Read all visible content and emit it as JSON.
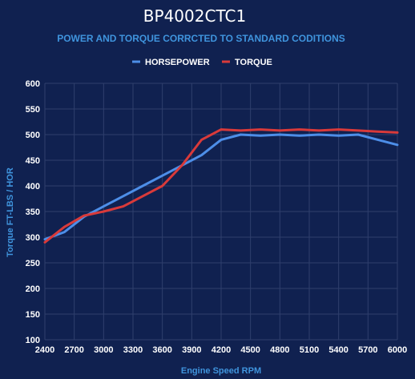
{
  "chart_data": {
    "type": "line",
    "title": "BP4002CTC1",
    "subtitle": "POWER AND TORQUE CORRCTED TO STANDARD CODITIONS",
    "xlabel": "Engine Speed RPM",
    "ylabel": "Torque FT-LBS / HOR",
    "xlim": [
      2400,
      6000
    ],
    "ylim": [
      100,
      600
    ],
    "x_ticks": [
      2400,
      2700,
      3000,
      3300,
      3600,
      3900,
      4200,
      4500,
      4800,
      5100,
      5400,
      5700,
      6000
    ],
    "y_ticks": [
      100,
      150,
      200,
      250,
      300,
      350,
      400,
      450,
      500,
      550,
      600
    ],
    "grid": true,
    "legend_position": "top",
    "series": [
      {
        "name": "HORSEPOWER",
        "color": "#4d8ee8",
        "x": [
          2400,
          2600,
          2800,
          3000,
          3200,
          3400,
          3600,
          3800,
          4000,
          4200,
          4400,
          4600,
          4800,
          5000,
          5200,
          5400,
          5600,
          5800,
          6000
        ],
        "y": [
          296,
          310,
          340,
          360,
          380,
          400,
          420,
          440,
          460,
          490,
          500,
          498,
          500,
          498,
          500,
          498,
          500,
          490,
          480
        ]
      },
      {
        "name": "TORQUE",
        "color": "#d93a3a",
        "x": [
          2400,
          2600,
          2800,
          3000,
          3200,
          3400,
          3600,
          3800,
          4000,
          4200,
          4400,
          4600,
          4800,
          5000,
          5200,
          5400,
          5600,
          5800,
          6000
        ],
        "y": [
          290,
          320,
          342,
          350,
          360,
          380,
          400,
          440,
          490,
          510,
          508,
          510,
          508,
          510,
          508,
          510,
          508,
          506,
          504
        ]
      }
    ]
  }
}
